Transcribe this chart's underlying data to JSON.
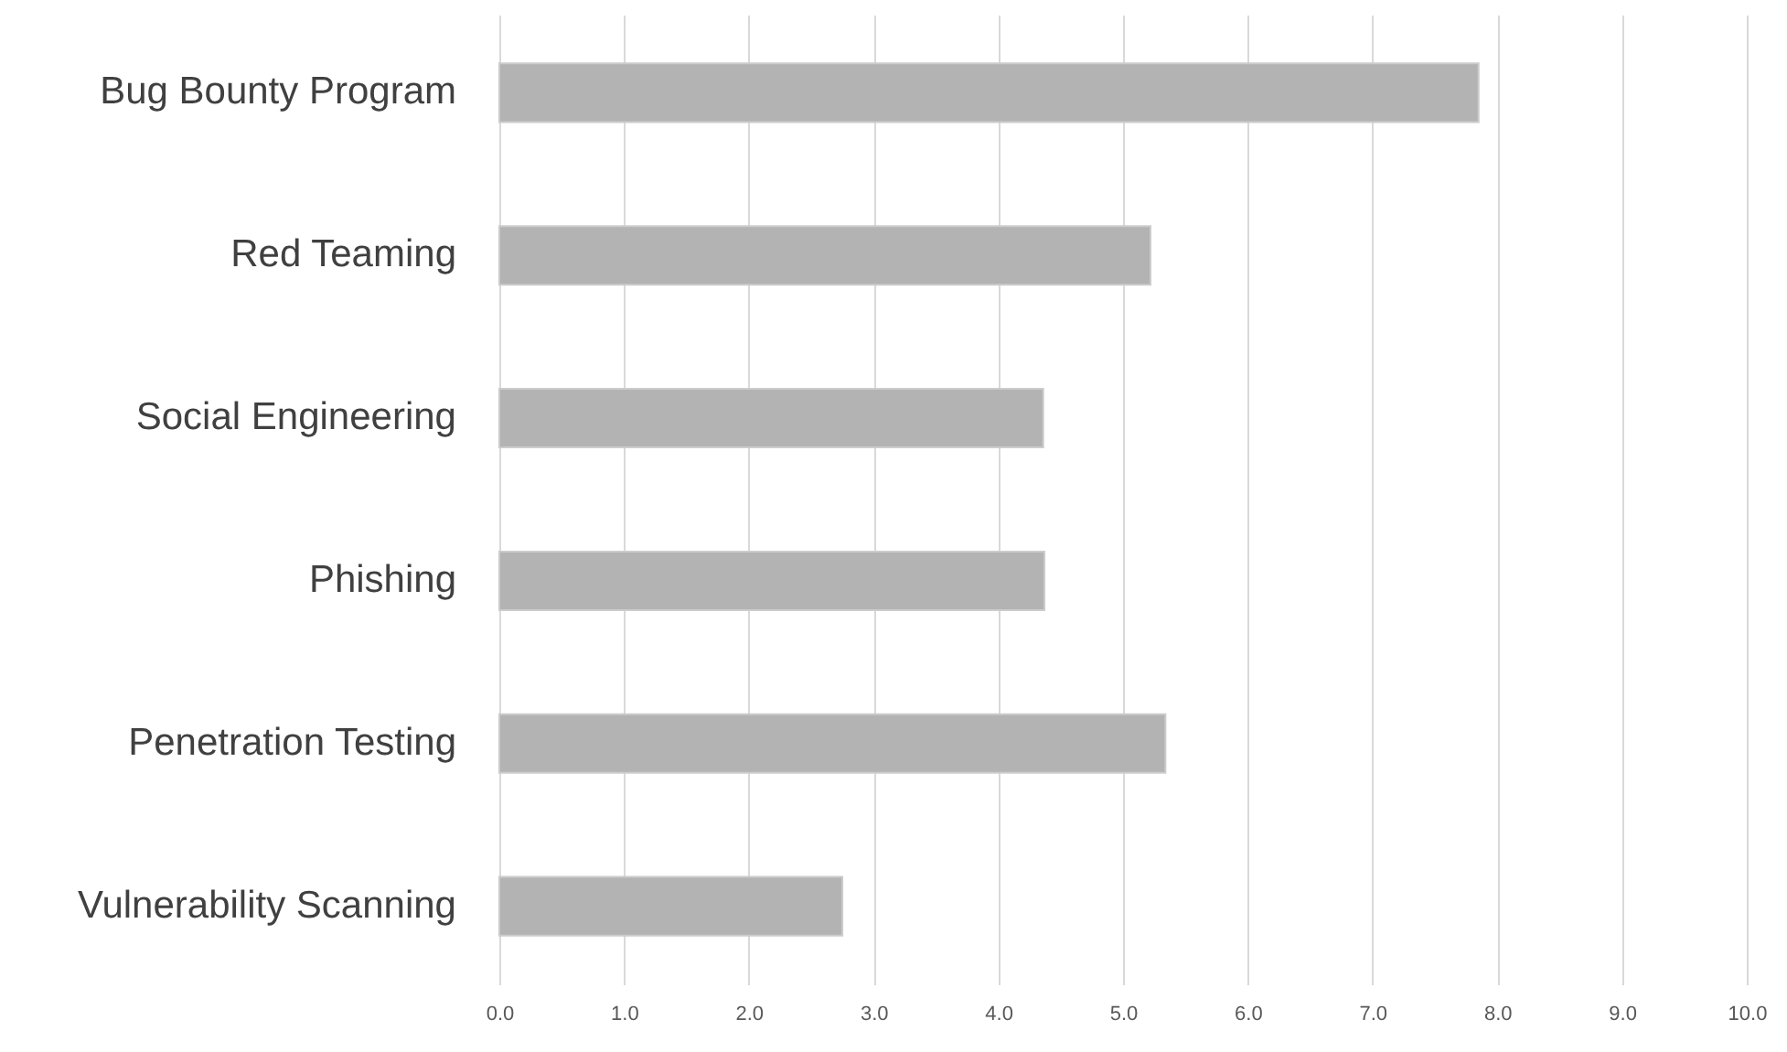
{
  "chart_data": {
    "type": "bar",
    "orientation": "horizontal",
    "categories": [
      "Bug Bounty Program",
      "Red Teaming",
      "Social Engineering",
      "Phishing",
      "Penetration Testing",
      "Vulnerability Scanning"
    ],
    "values": [
      7.85,
      5.22,
      4.36,
      4.37,
      5.34,
      2.75
    ],
    "color": "#b3b3b3",
    "xlim": [
      0,
      10
    ],
    "xticks": [
      {
        "value": 0,
        "label": "0.0"
      },
      {
        "value": 1,
        "label": "1.0"
      },
      {
        "value": 2,
        "label": "2.0"
      },
      {
        "value": 3,
        "label": "3.0"
      },
      {
        "value": 4,
        "label": "4.0"
      },
      {
        "value": 5,
        "label": "5.0"
      },
      {
        "value": 6,
        "label": "6.0"
      },
      {
        "value": 7,
        "label": "7.0"
      },
      {
        "value": 8,
        "label": "8.0"
      },
      {
        "value": 9,
        "label": "9.0"
      },
      {
        "value": 10,
        "label": "10.0"
      }
    ],
    "grid": "x"
  }
}
